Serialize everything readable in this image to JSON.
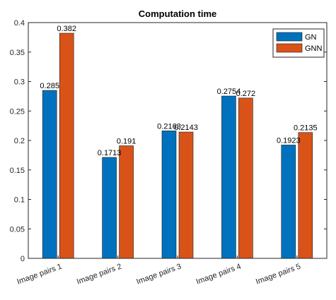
{
  "chart_data": {
    "type": "bar",
    "title": "Computation time",
    "xlabel": "",
    "ylabel": "",
    "categories": [
      "Image pairs 1",
      "Image pairs 2",
      "Image pairs 3",
      "Image pairs 4",
      "Image pairs 5"
    ],
    "series": [
      {
        "name": "GN",
        "values": [
          0.285,
          0.1713,
          0.2163,
          0.2754,
          0.1923
        ],
        "labels": [
          "0.285",
          "0.1713",
          "0.2163",
          "0.2754",
          "0.1923"
        ],
        "color": "#0072BD"
      },
      {
        "name": "GNN",
        "values": [
          0.382,
          0.191,
          0.2143,
          0.272,
          0.2135
        ],
        "labels": [
          "0.382",
          "0.191",
          "0.2143",
          "0.272",
          "0.2135"
        ],
        "color": "#D95319"
      }
    ],
    "ylim": [
      0,
      0.4
    ],
    "yticks": [
      0,
      0.05,
      0.1,
      0.15,
      0.2,
      0.25,
      0.3,
      0.35,
      0.4
    ],
    "ytick_labels": [
      "0",
      "0.05",
      "0.1",
      "0.15",
      "0.2",
      "0.25",
      "0.3",
      "0.35",
      "0.4"
    ],
    "grid": false,
    "legend_position": "top-right"
  }
}
